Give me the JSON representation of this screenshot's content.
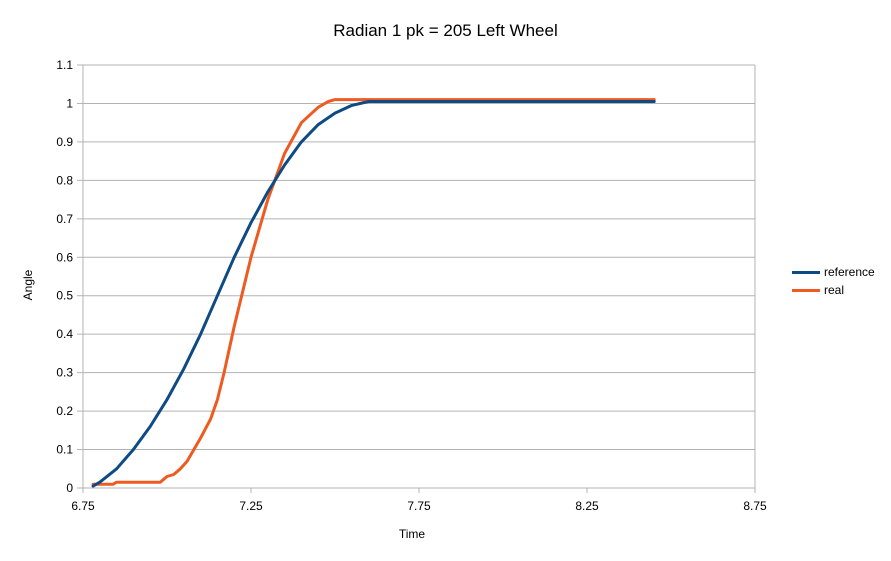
{
  "chart_data": {
    "type": "line",
    "title": "Radian 1 pk = 205 Left Wheel",
    "xlabel": "Time",
    "ylabel": "Angle",
    "xlim": [
      6.75,
      8.75
    ],
    "ylim": [
      0,
      1.1
    ],
    "x_ticks": [
      "6.75",
      "7.25",
      "7.75",
      "8.25",
      "8.75"
    ],
    "y_ticks": [
      "0",
      "0.1",
      "0.2",
      "0.3",
      "0.4",
      "0.5",
      "0.6",
      "0.7",
      "0.8",
      "0.9",
      "1",
      "1.1"
    ],
    "grid": true,
    "legend_position": "right",
    "series": [
      {
        "name": "reference",
        "color": "#0e4a84",
        "x": [
          6.78,
          6.8,
          6.85,
          6.9,
          6.95,
          7.0,
          7.05,
          7.1,
          7.15,
          7.2,
          7.25,
          7.3,
          7.35,
          7.4,
          7.45,
          7.5,
          7.55,
          7.6,
          7.7,
          7.8,
          8.0,
          8.2,
          8.45
        ],
        "y": [
          0.005,
          0.015,
          0.05,
          0.1,
          0.16,
          0.23,
          0.31,
          0.4,
          0.5,
          0.6,
          0.69,
          0.77,
          0.84,
          0.9,
          0.945,
          0.975,
          0.995,
          1.005,
          1.005,
          1.005,
          1.005,
          1.005,
          1.005
        ]
      },
      {
        "name": "real",
        "color": "#ef5a20",
        "x": [
          6.78,
          6.84,
          6.85,
          6.98,
          7.0,
          7.02,
          7.04,
          7.06,
          7.08,
          7.1,
          7.13,
          7.15,
          7.17,
          7.2,
          7.25,
          7.3,
          7.35,
          7.4,
          7.45,
          7.48,
          7.5,
          7.6,
          7.8,
          8.0,
          8.2,
          8.45
        ],
        "y": [
          0.01,
          0.01,
          0.015,
          0.015,
          0.03,
          0.035,
          0.05,
          0.07,
          0.1,
          0.13,
          0.18,
          0.23,
          0.3,
          0.42,
          0.6,
          0.75,
          0.87,
          0.95,
          0.99,
          1.005,
          1.01,
          1.01,
          1.01,
          1.01,
          1.01,
          1.01
        ]
      }
    ]
  }
}
